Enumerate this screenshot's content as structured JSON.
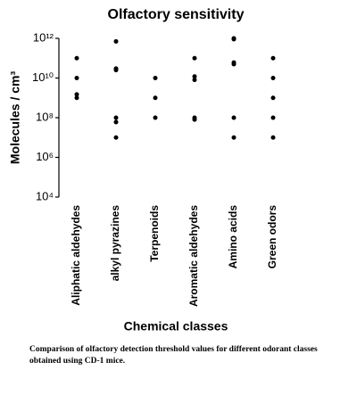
{
  "chart_data": {
    "type": "dot",
    "title": "Olfactory sensitivity",
    "x_label": "Chemical classes",
    "y_label": "Molecules / cm³",
    "categories": [
      "Aliphatic aldehydes",
      "alkyl pyrazines",
      "Terpenoids",
      "Aromatic aldehydes",
      "Amino acids",
      "Green odors"
    ],
    "values": [
      [
        100000000000,
        10000000000,
        1500000000,
        1000000000
      ],
      [
        700000000000,
        30000000000,
        25000000000,
        100000000,
        60000000,
        10000000
      ],
      [
        10000000000,
        1000000000,
        100000000
      ],
      [
        100000000000,
        12000000000,
        8000000000,
        100000000,
        80000000
      ],
      [
        1000000000000,
        900000000000,
        60000000000,
        50000000000,
        100000000,
        10000000
      ],
      [
        100000000000,
        10000000000,
        1000000000,
        100000000,
        10000000
      ]
    ],
    "color": "#000000",
    "log_scale": true,
    "ylim": [
      10000,
      1000000000000
    ],
    "yticks": [
      {
        "value": 10000,
        "label": "10⁴"
      },
      {
        "value": 1000000,
        "label": "10⁶"
      },
      {
        "value": 100000000,
        "label": "10⁸"
      },
      {
        "value": 10000000000,
        "label": "10¹⁰"
      },
      {
        "value": 1000000000000,
        "label": "10¹²"
      }
    ],
    "caption": "Comparison of olfactory detection threshold values for different odorant classes obtained using CD-1 mice."
  }
}
